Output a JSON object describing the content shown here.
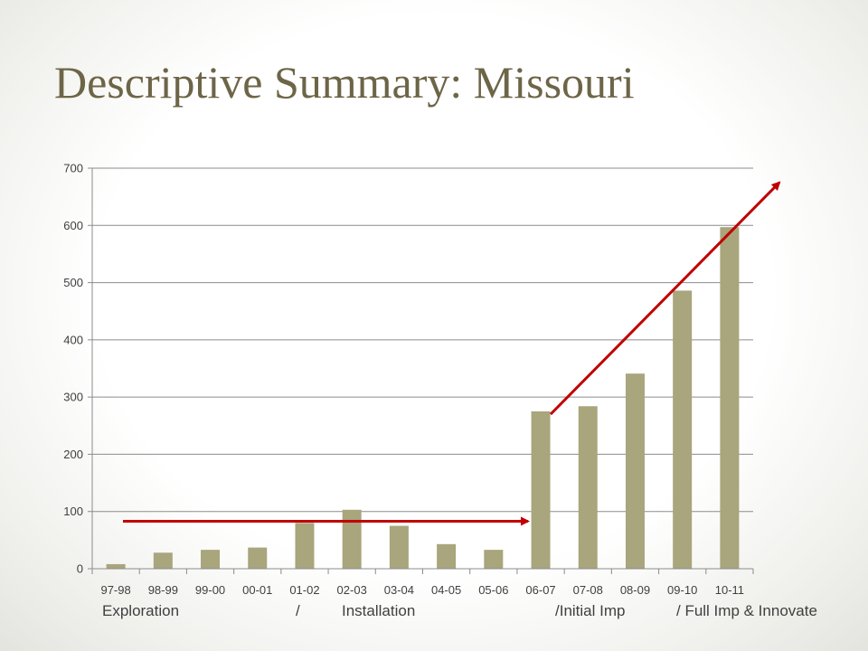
{
  "slide": {
    "title": "Descriptive Summary: Missouri"
  },
  "chart_data": {
    "type": "bar",
    "categories": [
      "97-98",
      "98-99",
      "99-00",
      "00-01",
      "01-02",
      "02-03",
      "03-04",
      "04-05",
      "05-06",
      "06-07",
      "07-08",
      "08-09",
      "09-10",
      "10-11"
    ],
    "values": [
      8,
      28,
      33,
      37,
      80,
      103,
      75,
      43,
      33,
      275,
      284,
      341,
      486,
      597
    ],
    "ylim": [
      0,
      700
    ],
    "yticks": [
      0,
      100,
      200,
      300,
      400,
      500,
      600,
      700
    ],
    "grid": true,
    "legend": "none",
    "bar_color": "#a9a57c",
    "arrow_color": "#c00000",
    "phase_labels": [
      "Exploration",
      "/",
      "Installation",
      "/Initial Imp",
      "/ Full Imp & Innovate"
    ],
    "trend_arrows": [
      {
        "name": "flat-trend",
        "from": {
          "x": "97-98",
          "y": 83
        },
        "to": {
          "x": "06-07",
          "y": 83
        }
      },
      {
        "name": "rising-trend",
        "from": {
          "x": "06-07",
          "y": 270
        },
        "to": {
          "x": "10-11",
          "y": 675
        }
      }
    ]
  }
}
